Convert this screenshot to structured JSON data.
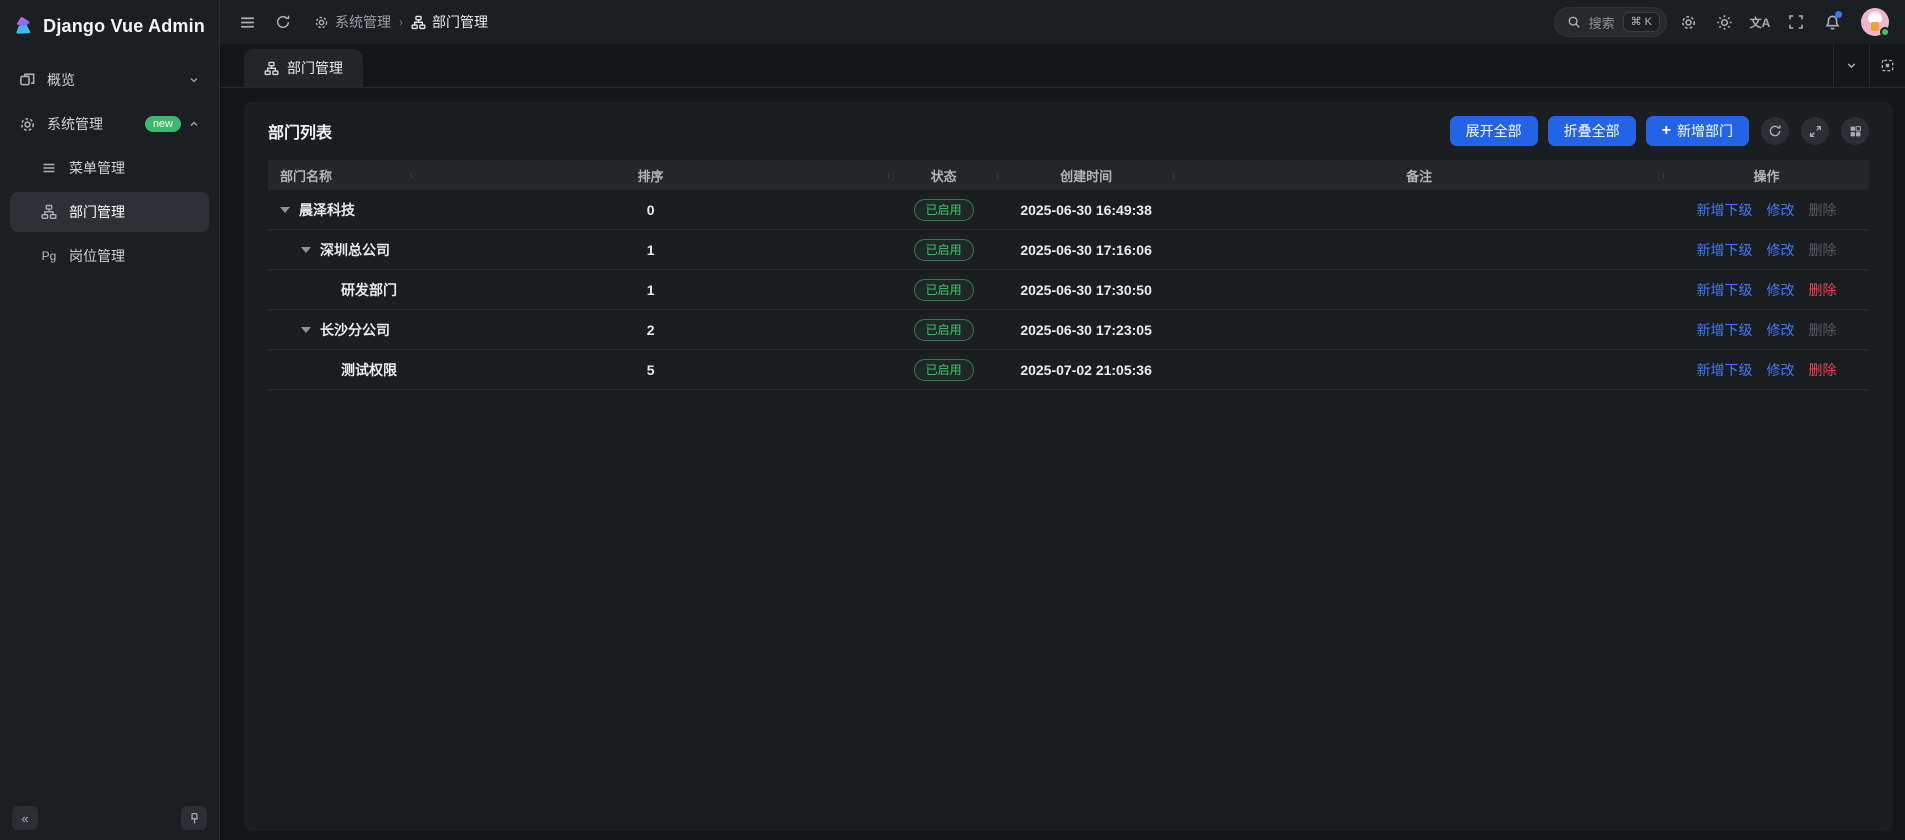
{
  "app": {
    "title": "Django Vue Admin"
  },
  "sidebar": {
    "items": [
      {
        "label": "概览",
        "icon": "dashboard-icon",
        "chevron": "down"
      },
      {
        "label": "系统管理",
        "icon": "gear-icon",
        "badge": "new",
        "chevron": "up"
      },
      {
        "label": "菜单管理",
        "icon": "menu-icon"
      },
      {
        "label": "部门管理",
        "icon": "org-icon",
        "active": true
      },
      {
        "label": "岗位管理",
        "icon_text": "Pg"
      }
    ],
    "collapse_label": "«"
  },
  "header": {
    "breadcrumb": [
      {
        "label": "系统管理",
        "icon": "gear-icon"
      },
      {
        "label": "部门管理",
        "icon": "org-icon"
      }
    ],
    "search": {
      "placeholder": "搜索",
      "shortcut": "⌘ K"
    }
  },
  "tabs": [
    {
      "label": "部门管理",
      "icon": "org-icon",
      "active": true
    }
  ],
  "page": {
    "card_title": "部门列表",
    "toolbar": {
      "expand_all": "展开全部",
      "collapse_all": "折叠全部",
      "add_department": "新增部门",
      "plus": "+"
    }
  },
  "table": {
    "columns": [
      "部门名称",
      "排序",
      "状态",
      "创建时间",
      "备注",
      "操作"
    ],
    "actions": {
      "add_child": "新增下级",
      "edit": "修改",
      "delete": "删除"
    },
    "rows": [
      {
        "name": "晨泽科技",
        "level": 0,
        "expandable": true,
        "order": "0",
        "status": "已启用",
        "created": "2025-06-30 16:49:38",
        "remark": "",
        "delete_enabled": false
      },
      {
        "name": "深圳总公司",
        "level": 1,
        "expandable": true,
        "order": "1",
        "status": "已启用",
        "created": "2025-06-30 17:16:06",
        "remark": "",
        "delete_enabled": false
      },
      {
        "name": "研发部门",
        "level": 2,
        "expandable": false,
        "order": "1",
        "status": "已启用",
        "created": "2025-06-30 17:30:50",
        "remark": "",
        "delete_enabled": true
      },
      {
        "name": "长沙分公司",
        "level": 1,
        "expandable": true,
        "order": "2",
        "status": "已启用",
        "created": "2025-06-30 17:23:05",
        "remark": "",
        "delete_enabled": false
      },
      {
        "name": "测试权限",
        "level": 2,
        "expandable": false,
        "order": "5",
        "status": "已启用",
        "created": "2025-07-02 21:05:36",
        "remark": "",
        "delete_enabled": true
      }
    ]
  },
  "colors": {
    "accent_blue": "#2264e5",
    "link_blue": "#3e7bfa",
    "status_green": "#42c76d",
    "badge_green": "#3cb96f",
    "danger_red": "#e5484d",
    "disabled_gray": "#55595e",
    "notification_dot_blue": "#2f7cf6"
  }
}
